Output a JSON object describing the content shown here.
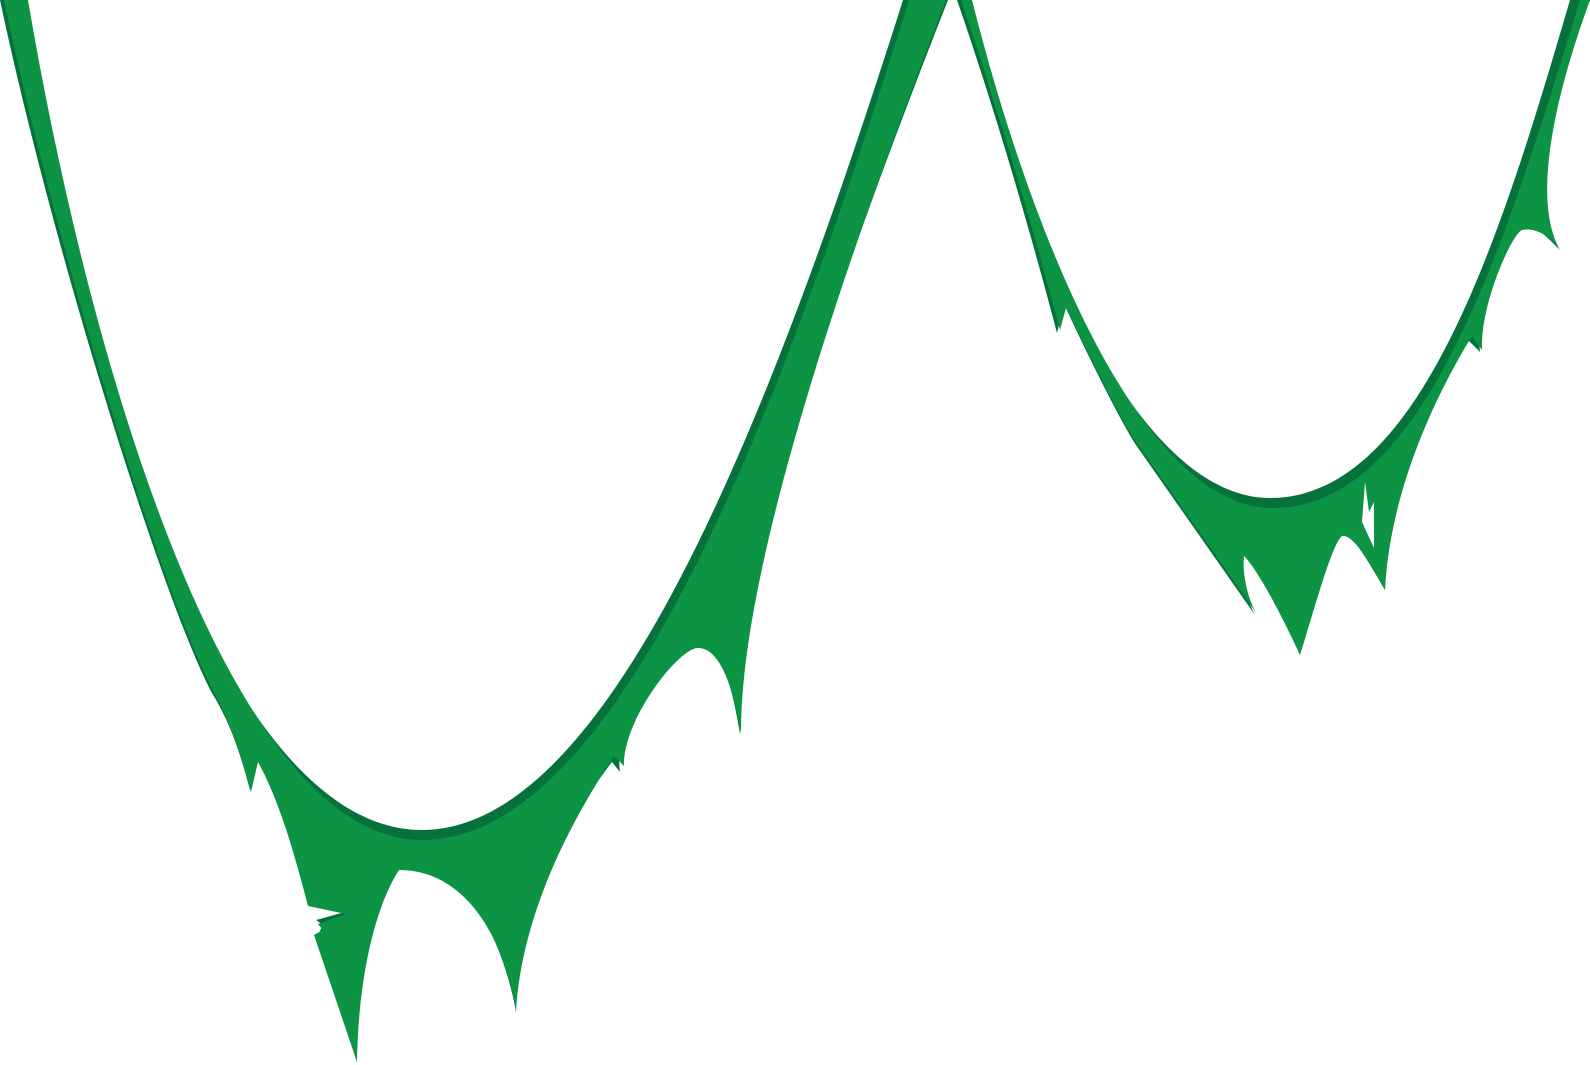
{
  "colors": {
    "background": "#ffffff",
    "slime_fill": "#0c9444",
    "slime_shadow": "#06713a"
  },
  "shapes": [
    {
      "name": "left-slime-drip",
      "type": "dripping-arch"
    },
    {
      "name": "right-slime-drip",
      "type": "dripping-arch"
    }
  ]
}
